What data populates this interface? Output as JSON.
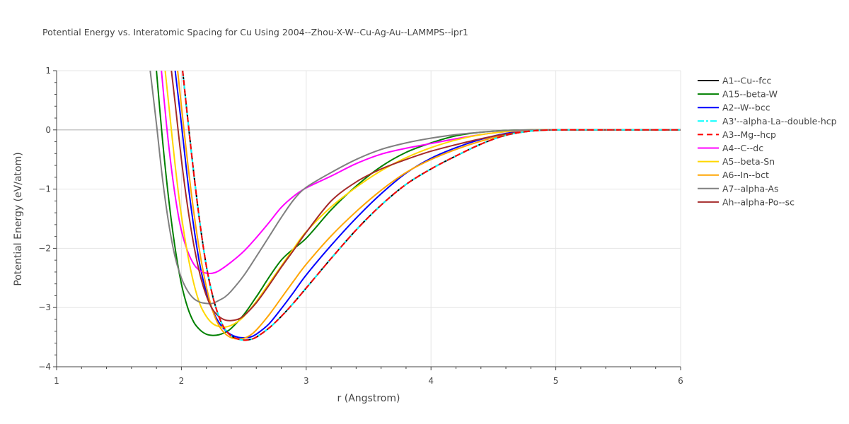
{
  "chart_data": {
    "type": "line",
    "title": "Potential Energy vs. Interatomic Spacing for Cu Using 2004--Zhou-X-W--Cu-Ag-Au--LAMMPS--ipr1",
    "xlabel": "r (Angstrom)",
    "ylabel": "Potential Energy (eV/atom)",
    "xlim": [
      1,
      6
    ],
    "ylim": [
      -4,
      1
    ],
    "xticks": [
      1,
      2,
      3,
      4,
      5,
      6
    ],
    "yticks": [
      1,
      0,
      -1,
      -2,
      -3,
      -4
    ],
    "tick_labels_x": [
      "1",
      "2",
      "3",
      "4",
      "5",
      "6"
    ],
    "tick_labels_y": [
      "1",
      "0",
      "−1",
      "−2",
      "−3",
      "−4"
    ],
    "grid": true,
    "legend_placement": "right",
    "series": [
      {
        "name": "A1--Cu--fcc",
        "color": "#000000",
        "dash": "solid",
        "x": [
          2.01,
          2.05,
          2.1,
          2.15,
          2.2,
          2.25,
          2.3,
          2.35,
          2.4,
          2.45,
          2.5,
          2.55,
          2.6,
          2.7,
          2.8,
          2.9,
          3.0,
          3.1,
          3.2,
          3.4,
          3.6,
          3.8,
          4.0,
          4.2,
          4.4,
          4.6,
          4.8,
          5.0,
          5.5,
          6.0
        ],
        "y": [
          1.0,
          0.2,
          -0.75,
          -1.6,
          -2.3,
          -2.8,
          -3.15,
          -3.37,
          -3.48,
          -3.53,
          -3.55,
          -3.54,
          -3.5,
          -3.35,
          -3.15,
          -2.92,
          -2.67,
          -2.42,
          -2.17,
          -1.69,
          -1.27,
          -0.92,
          -0.66,
          -0.44,
          -0.24,
          -0.09,
          -0.02,
          0.0,
          0.0,
          0.0
        ]
      },
      {
        "name": "A15--beta-W",
        "color": "#008000",
        "dash": "solid",
        "x": [
          1.8,
          1.85,
          1.9,
          1.95,
          2.0,
          2.05,
          2.1,
          2.15,
          2.2,
          2.25,
          2.3,
          2.35,
          2.4,
          2.5,
          2.6,
          2.8,
          3.0,
          3.2,
          3.4,
          3.6,
          3.8,
          4.0,
          4.2,
          4.4,
          4.6,
          4.8,
          5.0,
          5.5,
          6.0
        ],
        "y": [
          1.0,
          -0.2,
          -1.2,
          -2.0,
          -2.6,
          -3.0,
          -3.25,
          -3.38,
          -3.45,
          -3.47,
          -3.46,
          -3.42,
          -3.35,
          -3.12,
          -2.82,
          -2.2,
          -1.83,
          -1.35,
          -0.95,
          -0.62,
          -0.38,
          -0.22,
          -0.1,
          -0.04,
          -0.01,
          0.0,
          0.0,
          0.0,
          0.0
        ]
      },
      {
        "name": "A2--W--bcc",
        "color": "#0000ff",
        "dash": "solid",
        "x": [
          1.95,
          2.0,
          2.05,
          2.1,
          2.15,
          2.2,
          2.25,
          2.3,
          2.35,
          2.4,
          2.45,
          2.5,
          2.55,
          2.6,
          2.7,
          2.8,
          2.9,
          3.0,
          3.2,
          3.4,
          3.6,
          3.8,
          4.0,
          4.2,
          4.4,
          4.6,
          4.8,
          5.0,
          5.5,
          6.0
        ],
        "y": [
          1.0,
          0.1,
          -0.85,
          -1.65,
          -2.3,
          -2.75,
          -3.05,
          -3.25,
          -3.38,
          -3.46,
          -3.5,
          -3.51,
          -3.5,
          -3.45,
          -3.28,
          -3.02,
          -2.74,
          -2.45,
          -1.95,
          -1.49,
          -1.08,
          -0.73,
          -0.48,
          -0.3,
          -0.16,
          -0.06,
          -0.01,
          0.0,
          0.0,
          0.0
        ]
      },
      {
        "name": "A3'--alpha-La--double-hcp",
        "color": "#00ffff",
        "dash": "dashdot",
        "x": [
          2.01,
          2.05,
          2.1,
          2.15,
          2.2,
          2.25,
          2.3,
          2.35,
          2.4,
          2.45,
          2.5,
          2.55,
          2.6,
          2.7,
          2.8,
          2.9,
          3.0,
          3.1,
          3.2,
          3.4,
          3.6,
          3.8,
          4.0,
          4.2,
          4.4,
          4.6,
          4.8,
          5.0,
          5.5,
          6.0
        ],
        "y": [
          1.0,
          0.2,
          -0.75,
          -1.6,
          -2.3,
          -2.8,
          -3.15,
          -3.37,
          -3.48,
          -3.53,
          -3.55,
          -3.54,
          -3.5,
          -3.35,
          -3.15,
          -2.92,
          -2.67,
          -2.42,
          -2.17,
          -1.69,
          -1.27,
          -0.92,
          -0.66,
          -0.44,
          -0.24,
          -0.09,
          -0.02,
          0.0,
          0.0,
          0.0
        ]
      },
      {
        "name": "A3--Mg--hcp",
        "color": "#ff0000",
        "dash": "dash",
        "x": [
          2.01,
          2.05,
          2.1,
          2.15,
          2.2,
          2.25,
          2.3,
          2.35,
          2.4,
          2.45,
          2.5,
          2.55,
          2.6,
          2.7,
          2.8,
          2.9,
          3.0,
          3.1,
          3.2,
          3.4,
          3.6,
          3.8,
          4.0,
          4.2,
          4.4,
          4.6,
          4.8,
          5.0,
          5.5,
          6.0
        ],
        "y": [
          1.0,
          0.2,
          -0.75,
          -1.6,
          -2.3,
          -2.8,
          -3.15,
          -3.37,
          -3.48,
          -3.53,
          -3.55,
          -3.54,
          -3.5,
          -3.35,
          -3.15,
          -2.92,
          -2.67,
          -2.42,
          -2.17,
          -1.69,
          -1.27,
          -0.92,
          -0.66,
          -0.44,
          -0.24,
          -0.09,
          -0.02,
          0.0,
          0.0,
          0.0
        ]
      },
      {
        "name": "A4--C--dc",
        "color": "#ff00ff",
        "dash": "solid",
        "x": [
          1.84,
          1.88,
          1.92,
          1.96,
          2.0,
          2.05,
          2.1,
          2.15,
          2.2,
          2.25,
          2.3,
          2.4,
          2.5,
          2.6,
          2.7,
          2.8,
          2.9,
          3.0,
          3.2,
          3.4,
          3.6,
          3.8,
          4.0,
          4.2,
          4.4,
          4.6,
          4.8,
          5.0,
          5.5,
          6.0
        ],
        "y": [
          1.0,
          0.1,
          -0.65,
          -1.25,
          -1.7,
          -2.05,
          -2.27,
          -2.38,
          -2.42,
          -2.42,
          -2.38,
          -2.23,
          -2.05,
          -1.82,
          -1.57,
          -1.31,
          -1.12,
          -0.98,
          -0.78,
          -0.57,
          -0.41,
          -0.31,
          -0.23,
          -0.15,
          -0.08,
          -0.03,
          -0.01,
          0.0,
          0.0,
          0.0
        ]
      },
      {
        "name": "A5--beta-Sn",
        "color": "#ffd700",
        "dash": "solid",
        "x": [
          1.87,
          1.9,
          1.95,
          2.0,
          2.05,
          2.1,
          2.15,
          2.2,
          2.25,
          2.3,
          2.35,
          2.4,
          2.45,
          2.5,
          2.6,
          2.7,
          2.8,
          2.9,
          3.0,
          3.2,
          3.4,
          3.6,
          3.8,
          4.0,
          4.2,
          4.4,
          4.6,
          4.8,
          5.0,
          5.5,
          6.0
        ],
        "y": [
          1.0,
          0.4,
          -0.6,
          -1.45,
          -2.1,
          -2.6,
          -2.95,
          -3.15,
          -3.27,
          -3.32,
          -3.33,
          -3.3,
          -3.24,
          -3.15,
          -2.9,
          -2.6,
          -2.3,
          -2.0,
          -1.72,
          -1.3,
          -0.97,
          -0.69,
          -0.47,
          -0.3,
          -0.17,
          -0.08,
          -0.03,
          0.0,
          0.0,
          0.0,
          0.0
        ]
      },
      {
        "name": "A6--In--bct",
        "color": "#ffa500",
        "dash": "solid",
        "x": [
          1.97,
          2.0,
          2.05,
          2.1,
          2.15,
          2.2,
          2.25,
          2.3,
          2.35,
          2.4,
          2.45,
          2.5,
          2.55,
          2.6,
          2.7,
          2.8,
          2.9,
          3.0,
          3.2,
          3.4,
          3.6,
          3.8,
          4.0,
          4.2,
          4.4,
          4.6,
          4.8,
          5.0,
          5.5,
          6.0
        ],
        "y": [
          1.0,
          0.4,
          -0.55,
          -1.4,
          -2.1,
          -2.65,
          -3.05,
          -3.3,
          -3.44,
          -3.51,
          -3.53,
          -3.52,
          -3.47,
          -3.38,
          -3.13,
          -2.84,
          -2.55,
          -2.27,
          -1.79,
          -1.38,
          -1.02,
          -0.72,
          -0.5,
          -0.33,
          -0.19,
          -0.08,
          -0.02,
          0.0,
          0.0,
          0.0
        ]
      },
      {
        "name": "A7--alpha-As",
        "color": "#808080",
        "dash": "solid",
        "x": [
          1.75,
          1.8,
          1.85,
          1.9,
          1.95,
          2.0,
          2.05,
          2.1,
          2.15,
          2.2,
          2.25,
          2.3,
          2.35,
          2.4,
          2.5,
          2.6,
          2.7,
          2.8,
          2.9,
          3.0,
          3.2,
          3.4,
          3.6,
          3.8,
          4.0,
          4.2,
          4.4,
          4.6,
          4.8,
          5.0,
          5.5,
          6.0
        ],
        "y": [
          1.0,
          0.1,
          -0.85,
          -1.6,
          -2.15,
          -2.5,
          -2.72,
          -2.85,
          -2.91,
          -2.93,
          -2.93,
          -2.88,
          -2.82,
          -2.72,
          -2.46,
          -2.14,
          -1.81,
          -1.48,
          -1.18,
          -0.97,
          -0.72,
          -0.5,
          -0.33,
          -0.22,
          -0.14,
          -0.08,
          -0.04,
          -0.01,
          0.0,
          0.0,
          0.0,
          0.0
        ]
      },
      {
        "name": "Ah--alpha-Po--sc",
        "color": "#a52a2a",
        "dash": "solid",
        "x": [
          1.92,
          1.95,
          2.0,
          2.05,
          2.1,
          2.15,
          2.2,
          2.25,
          2.3,
          2.35,
          2.4,
          2.45,
          2.5,
          2.6,
          2.7,
          2.8,
          2.9,
          3.0,
          3.2,
          3.4,
          3.6,
          3.8,
          4.0,
          4.2,
          4.4,
          4.6,
          4.8,
          5.0,
          5.5,
          6.0
        ],
        "y": [
          1.0,
          0.45,
          -0.5,
          -1.3,
          -1.95,
          -2.45,
          -2.8,
          -3.03,
          -3.15,
          -3.21,
          -3.22,
          -3.2,
          -3.14,
          -2.92,
          -2.63,
          -2.32,
          -2.03,
          -1.73,
          -1.2,
          -0.88,
          -0.66,
          -0.5,
          -0.36,
          -0.25,
          -0.15,
          -0.07,
          -0.02,
          0.0,
          0.0,
          0.0
        ]
      }
    ]
  }
}
